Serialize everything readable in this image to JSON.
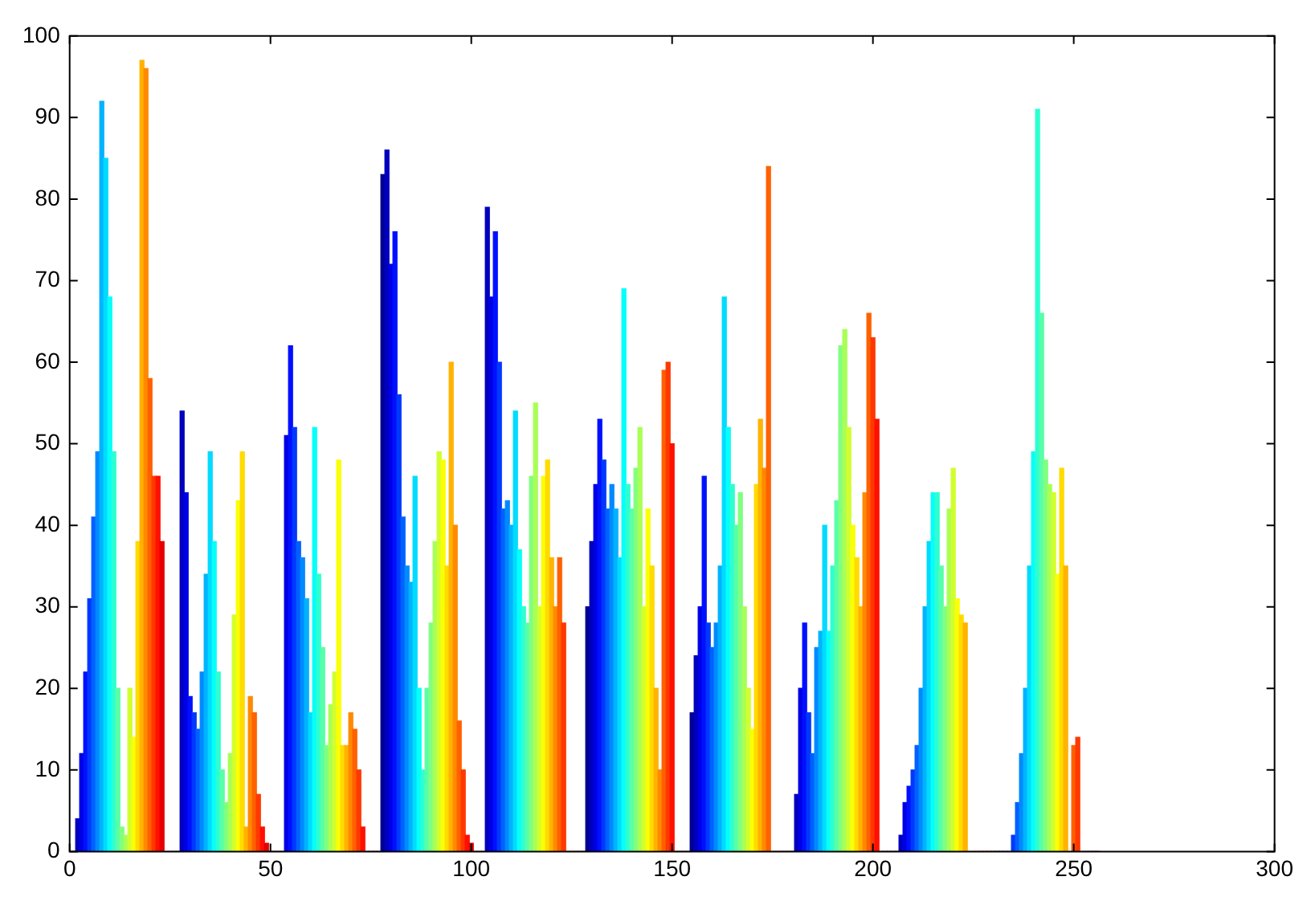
{
  "chart_data": {
    "type": "bar",
    "x": [
      1,
      2,
      3,
      4,
      5,
      6,
      7,
      8,
      9,
      10,
      11,
      12,
      13,
      14,
      15,
      16,
      17,
      18,
      19,
      20,
      21,
      22,
      23,
      24,
      25,
      26,
      27,
      28,
      29,
      30,
      31,
      32,
      33,
      34,
      35,
      36,
      37,
      38,
      39,
      40,
      41,
      42,
      43,
      44,
      45,
      46,
      47,
      48,
      49,
      50,
      51,
      52,
      53,
      54,
      55,
      56,
      57,
      58,
      59,
      60,
      61,
      62,
      63,
      64,
      65,
      66,
      67,
      68,
      69,
      70,
      71,
      72,
      73,
      74,
      75,
      76,
      77,
      78,
      79,
      80,
      81,
      82,
      83,
      84,
      85,
      86,
      87,
      88,
      89,
      90,
      91,
      92,
      93,
      94,
      95,
      96,
      97,
      98,
      99,
      100,
      101,
      102,
      103,
      104,
      105,
      106,
      107,
      108,
      109,
      110,
      111,
      112,
      113,
      114,
      115,
      116,
      117,
      118,
      119,
      120,
      121,
      122,
      123,
      124,
      125,
      126,
      127,
      128,
      129,
      130,
      131,
      132,
      133,
      134,
      135,
      136,
      137,
      138,
      139,
      140,
      141,
      142,
      143,
      144,
      145,
      146,
      147,
      148,
      149,
      150,
      151,
      152,
      153,
      154,
      155,
      156,
      157,
      158,
      159,
      160,
      161,
      162,
      163,
      164,
      165,
      166,
      167,
      168,
      169,
      170,
      171,
      172,
      173,
      174,
      175,
      176,
      177,
      178,
      179,
      180,
      181,
      182,
      183,
      184,
      185,
      186,
      187,
      188,
      189,
      190,
      191,
      192,
      193,
      194,
      195,
      196,
      197,
      198,
      199,
      200,
      201,
      202,
      203,
      204,
      205,
      206,
      207,
      208,
      209,
      210,
      211,
      212,
      213,
      214,
      215,
      216,
      217,
      218,
      219,
      220,
      221,
      222,
      223,
      224,
      225,
      226,
      227,
      228,
      229,
      230,
      231,
      232,
      233,
      234,
      235,
      236,
      237,
      238,
      239,
      240,
      241,
      242,
      243,
      244,
      245,
      246,
      247,
      248,
      249,
      250,
      251,
      252,
      253,
      254,
      255,
      256
    ],
    "values": [
      0,
      4,
      12,
      22,
      31,
      41,
      49,
      92,
      85,
      68,
      49,
      20,
      3,
      2,
      20,
      14,
      38,
      97,
      96,
      58,
      46,
      46,
      38,
      0,
      0,
      0,
      0,
      54,
      44,
      19,
      17,
      15,
      22,
      34,
      49,
      38,
      22,
      10,
      6,
      12,
      29,
      43,
      49,
      3,
      19,
      17,
      7,
      3,
      1,
      0,
      0,
      0,
      0,
      51,
      62,
      52,
      38,
      36,
      31,
      17,
      52,
      34,
      25,
      13,
      18,
      22,
      48,
      13,
      13,
      17,
      15,
      10,
      3,
      0,
      0,
      0,
      0,
      83,
      86,
      72,
      76,
      56,
      41,
      35,
      33,
      46,
      20,
      10,
      20,
      28,
      38,
      49,
      48,
      35,
      60,
      40,
      16,
      10,
      2,
      1,
      0,
      0,
      0,
      79,
      68,
      76,
      60,
      42,
      43,
      40,
      54,
      37,
      30,
      28,
      46,
      55,
      30,
      46,
      48,
      36,
      30,
      36,
      28,
      0,
      0,
      0,
      0,
      0,
      30,
      38,
      45,
      53,
      48,
      42,
      45,
      42,
      36,
      69,
      45,
      42,
      47,
      52,
      30,
      42,
      35,
      20,
      10,
      59,
      60,
      50,
      0,
      0,
      0,
      0,
      17,
      24,
      30,
      46,
      28,
      25,
      28,
      35,
      68,
      52,
      45,
      40,
      44,
      30,
      20,
      15,
      45,
      53,
      47,
      84,
      0,
      0,
      0,
      0,
      0,
      0,
      7,
      20,
      28,
      17,
      12,
      25,
      27,
      40,
      27,
      35,
      43,
      62,
      64,
      52,
      40,
      36,
      30,
      44,
      66,
      63,
      53,
      0,
      0,
      0,
      0,
      0,
      2,
      6,
      8,
      10,
      13,
      20,
      30,
      38,
      44,
      44,
      35,
      30,
      42,
      47,
      31,
      29,
      28,
      0,
      0,
      0,
      0,
      0,
      0,
      0,
      0,
      0,
      0,
      0,
      2,
      6,
      12,
      20,
      35,
      49,
      91,
      66,
      48,
      45,
      44,
      34,
      47,
      35,
      0,
      13,
      14,
      0,
      0,
      0,
      0,
      0
    ],
    "colors": [
      "#000094",
      "#0000bd",
      "#0000e6",
      "#0010ff",
      "#0038ff",
      "#0061ff",
      "#008aff",
      "#00b3ff",
      "#00dbff",
      "#05fffa",
      "#2effd1",
      "#57ffa8",
      "#80ff80",
      "#a8ff57",
      "#d1ff2e",
      "#faff05",
      "#ffdb00",
      "#ffb300",
      "#ff8a00",
      "#ff6100",
      "#ff3800",
      "#ff1000",
      "#e60000",
      "#bd0000",
      "#940000",
      "#940000",
      "#000094",
      "#0000bd",
      "#0000e6",
      "#0010ff",
      "#0038ff",
      "#0061ff",
      "#008aff",
      "#00b3ff",
      "#00dbff",
      "#05fffa",
      "#2effd1",
      "#57ffa8",
      "#80ff80",
      "#a8ff57",
      "#d1ff2e",
      "#faff05",
      "#ffdb00",
      "#ffb300",
      "#ff8a00",
      "#ff6100",
      "#ff3800",
      "#ff1000",
      "#e60000",
      "#bd0000",
      "#940000",
      "#000094",
      "#0000bd",
      "#0000e6",
      "#0010ff",
      "#0038ff",
      "#0061ff",
      "#008aff",
      "#00b3ff",
      "#00dbff",
      "#05fffa",
      "#2effd1",
      "#57ffa8",
      "#80ff80",
      "#a8ff57",
      "#d1ff2e",
      "#faff05",
      "#ffdb00",
      "#ffb300",
      "#ff8a00",
      "#ff6100",
      "#ff3800",
      "#ff1000",
      "#e60000",
      "#bd0000",
      "#940000",
      "#940000",
      "#000094",
      "#0000bd",
      "#0000e6",
      "#0010ff",
      "#0038ff",
      "#0061ff",
      "#008aff",
      "#00b3ff",
      "#00dbff",
      "#05fffa",
      "#2effd1",
      "#57ffa8",
      "#80ff80",
      "#a8ff57",
      "#d1ff2e",
      "#faff05",
      "#ffdb00",
      "#ffb300",
      "#ff8a00",
      "#ff6100",
      "#ff3800",
      "#ff1000",
      "#e60000",
      "#bd0000",
      "#940000",
      "#000094",
      "#0000bd",
      "#0000e6",
      "#0010ff",
      "#0038ff",
      "#0061ff",
      "#008aff",
      "#00b3ff",
      "#00dbff",
      "#05fffa",
      "#2effd1",
      "#57ffa8",
      "#80ff80",
      "#a8ff57",
      "#d1ff2e",
      "#faff05",
      "#ffdb00",
      "#ffb300",
      "#ff8a00",
      "#ff6100",
      "#ff3800",
      "#ff1000",
      "#e60000",
      "#bd0000",
      "#940000",
      "#940000",
      "#000094",
      "#0000bd",
      "#0000e6",
      "#0010ff",
      "#0038ff",
      "#0061ff",
      "#008aff",
      "#00b3ff",
      "#00dbff",
      "#05fffa",
      "#2effd1",
      "#57ffa8",
      "#80ff80",
      "#a8ff57",
      "#d1ff2e",
      "#faff05",
      "#ffdb00",
      "#ffb300",
      "#ff8a00",
      "#ff6100",
      "#ff3800",
      "#ff1000",
      "#e60000",
      "#bd0000",
      "#940000",
      "#940000",
      "#000094",
      "#0000bd",
      "#0000e6",
      "#0010ff",
      "#0038ff",
      "#0061ff",
      "#008aff",
      "#00b3ff",
      "#00dbff",
      "#05fffa",
      "#2effd1",
      "#57ffa8",
      "#80ff80",
      "#a8ff57",
      "#d1ff2e",
      "#faff05",
      "#ffdb00",
      "#ffb300",
      "#ff8a00",
      "#ff6100",
      "#ff3800",
      "#ff1000",
      "#e60000",
      "#bd0000",
      "#940000",
      "#000094",
      "#0000bd",
      "#0000e6",
      "#0010ff",
      "#0038ff",
      "#0061ff",
      "#008aff",
      "#00b3ff",
      "#00dbff",
      "#05fffa",
      "#2effd1",
      "#57ffa8",
      "#80ff80",
      "#a8ff57",
      "#d1ff2e",
      "#faff05",
      "#ffdb00",
      "#ffb300",
      "#ff8a00",
      "#ff6100",
      "#ff3800",
      "#ff1000",
      "#e60000",
      "#bd0000",
      "#940000",
      "#940000",
      "#000094",
      "#0000bd",
      "#0000e6",
      "#0010ff",
      "#0038ff",
      "#0061ff",
      "#008aff",
      "#00b3ff",
      "#00dbff",
      "#05fffa",
      "#2effd1",
      "#57ffa8",
      "#80ff80",
      "#a8ff57",
      "#d1ff2e",
      "#faff05",
      "#ffdb00",
      "#ffb300",
      "#ff8a00",
      "#ff6100",
      "#ff3800",
      "#ff1000",
      "#e60000",
      "#bd0000",
      "#940000",
      "#000094",
      "#0000bd",
      "#0000e6",
      "#0010ff",
      "#0038ff",
      "#0061ff",
      "#008aff",
      "#00b3ff",
      "#00dbff",
      "#05fffa",
      "#2effd1",
      "#57ffa8",
      "#80ff80",
      "#a8ff57",
      "#d1ff2e",
      "#faff05",
      "#ffdb00",
      "#ffb300",
      "#ff8a00",
      "#ff6100",
      "#ff3800",
      "#ff1000",
      "#e60000",
      "#bd0000",
      "#940000",
      "#940000"
    ],
    "xlim": [
      0,
      300
    ],
    "xticks": [
      0,
      50,
      100,
      150,
      200,
      250,
      300
    ],
    "ylim": [
      0,
      100
    ],
    "yticks": [
      0,
      10,
      20,
      30,
      40,
      50,
      60,
      70,
      80,
      90,
      100
    ]
  }
}
